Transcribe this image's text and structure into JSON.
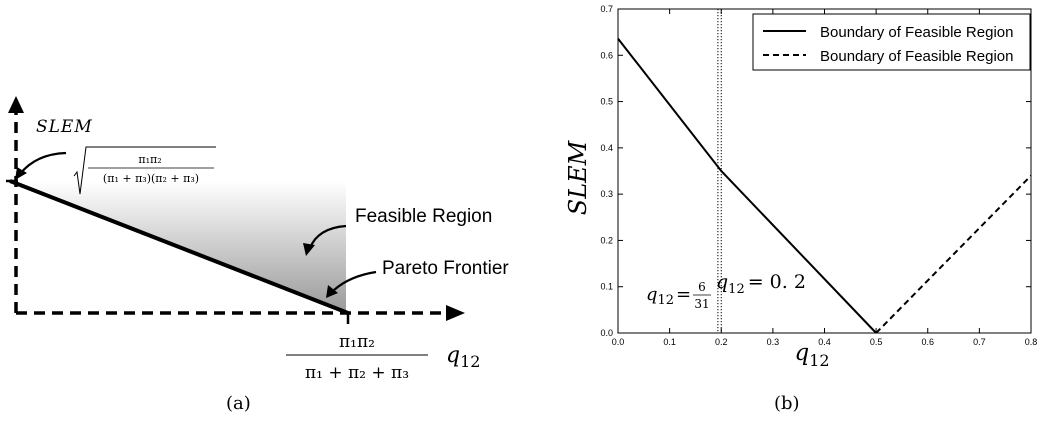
{
  "panel_a": {
    "y_axis_label": "SLEM",
    "x_axis_label": "q",
    "x_axis_label_sub": "12",
    "sqrt_numerator": "π₁π₂",
    "sqrt_denominator": "(π₁ + π₃)(π₂ + π₃)",
    "x_frac_numerator": "π₁π₂",
    "x_frac_denominator": "π₁ + π₂ + π₃",
    "feasible_region_label": "Feasible Region",
    "pareto_frontier_label": "Pareto Frontier",
    "caption": "(a)"
  },
  "panel_b": {
    "caption": "(b)",
    "annot_a": "q",
    "annot_a_sub": "12",
    "annot_a_eq": "=",
    "annot_a_num": "6",
    "annot_a_den": "31",
    "annot_b": "q",
    "annot_b_sub": "12",
    "annot_b_eq": "= 0. 2"
  },
  "chart_data": {
    "type": "line",
    "xlabel": "q12",
    "ylabel": "SLEM",
    "xlim": [
      0.0,
      0.8
    ],
    "ylim": [
      0.0,
      0.7
    ],
    "xticks": [
      "0.0",
      "0.1",
      "0.2",
      "0.3",
      "0.4",
      "0.5",
      "0.6",
      "0.7",
      "0.8"
    ],
    "yticks": [
      "0.0",
      "0.1",
      "0.2",
      "0.3",
      "0.4",
      "0.5",
      "0.6",
      "0.7"
    ],
    "legend_position": "top-right",
    "series": [
      {
        "name": "Boundary of Feasible Region",
        "style": "solid",
        "x": [
          0.0,
          0.2,
          0.5
        ],
        "y": [
          0.636,
          0.35,
          0.0
        ]
      },
      {
        "name": "Boundary of Feasible Region",
        "style": "dashed",
        "x": [
          0.5,
          0.8
        ],
        "y": [
          0.0,
          0.34
        ]
      }
    ],
    "vlines": [
      {
        "x": 0.1935,
        "style": "dotted"
      },
      {
        "x": 0.2,
        "style": "dotted"
      }
    ]
  }
}
